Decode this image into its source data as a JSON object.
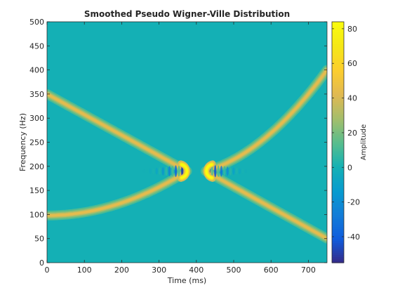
{
  "chart_data": {
    "type": "heatmap",
    "title": "Smoothed Pseudo Wigner-Ville Distribution",
    "xlabel": "Time (ms)",
    "ylabel": "Frequency (Hz)",
    "xlim": [
      0,
      750
    ],
    "ylim": [
      0,
      500
    ],
    "xticks": [
      0,
      100,
      200,
      300,
      400,
      500,
      600,
      700
    ],
    "yticks": [
      0,
      50,
      100,
      150,
      200,
      250,
      300,
      350,
      400,
      450,
      500
    ],
    "colorbar": {
      "label": "Amplitude",
      "limits": [
        -55,
        84
      ],
      "ticks": [
        -40,
        -20,
        0,
        20,
        40,
        60,
        80
      ],
      "colormap": "parula"
    },
    "components": [
      {
        "name": "",
        "type": "linear",
        "t_start": 0,
        "t_end": 375,
        "f_start": 350,
        "f_end": 190
      },
      {
        "name": "",
        "type": "quadratic",
        "t_start": 0,
        "t_end": 375,
        "f_start": 98,
        "f_end": 190
      },
      {
        "name": "",
        "type": "quadratic",
        "t_start": 425,
        "t_end": 750,
        "f_start": 190,
        "f_end": 400
      },
      {
        "name": "",
        "type": "linear",
        "t_start": 425,
        "t_end": 750,
        "f_start": 190,
        "f_end": 50
      }
    ],
    "peaks": [
      {
        "t": 375,
        "f": 190,
        "amplitude": 84
      },
      {
        "t": 427,
        "f": 190,
        "amplitude": 84
      }
    ],
    "interference": [
      {
        "t_start": 255,
        "t_end": 375,
        "f": 190,
        "amplitude": -55
      },
      {
        "t_start": 430,
        "t_end": 545,
        "f": 190,
        "amplitude": -55
      }
    ],
    "grid": false,
    "background_value": 0
  }
}
